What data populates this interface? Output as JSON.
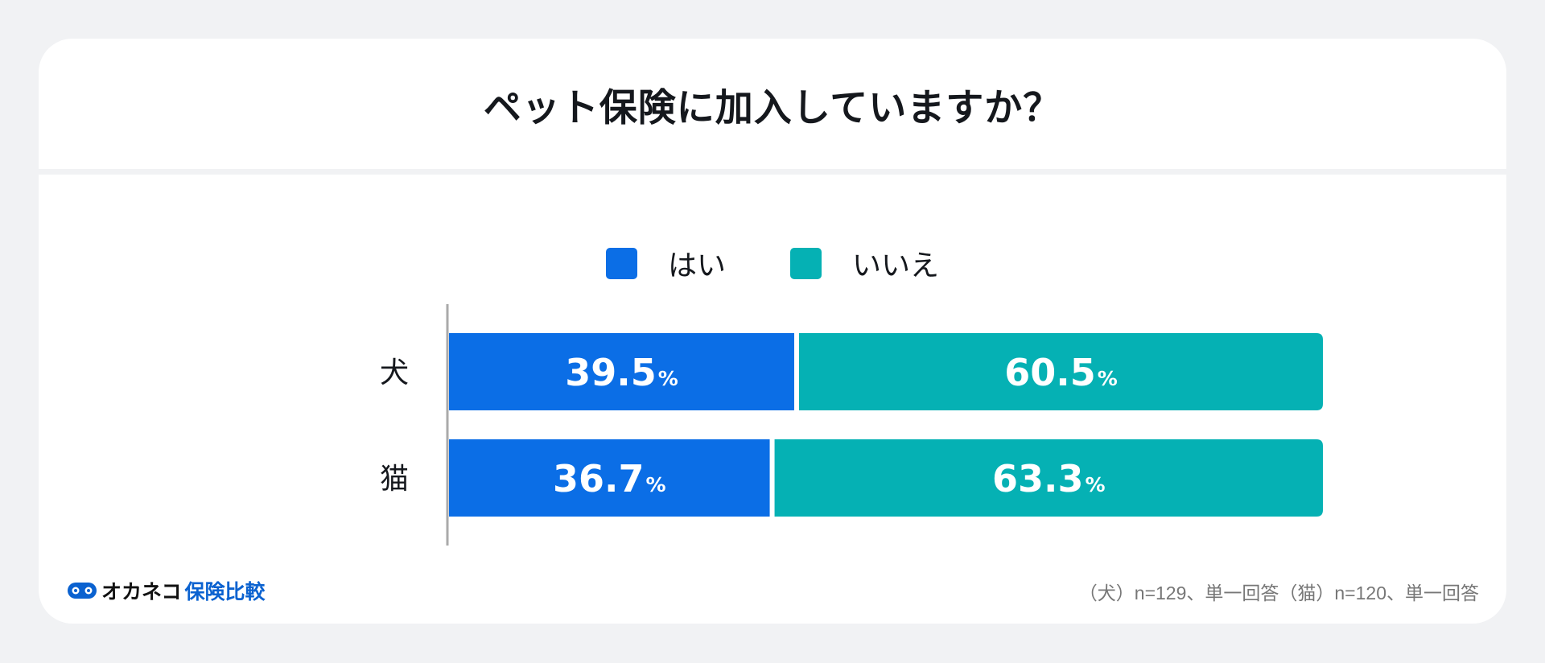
{
  "page": {
    "title": "ペット保険に加入していますか？",
    "note": "（犬）n=129、単一回答（猫）n=120、単一回答",
    "logo_main": "オカネコ",
    "logo_sub": "保険比較",
    "logo_icon": "owl-face-icon"
  },
  "colors": {
    "yes": "#0b6ee6",
    "no": "#05b1b4",
    "background": "#f1f2f4",
    "card": "#ffffff",
    "axis": "#aaaaaa"
  },
  "chart_data": {
    "type": "bar",
    "orientation": "horizontal",
    "stacked": true,
    "percent_stacked": true,
    "categories": [
      "犬",
      "猫"
    ],
    "series": [
      {
        "name": "はい",
        "values": [
          39.5,
          36.7
        ]
      },
      {
        "name": "いいえ",
        "values": [
          60.5,
          63.3
        ]
      }
    ],
    "value_suffix": "%",
    "xlim": [
      0,
      100
    ],
    "legend_position": "top-center",
    "grid": false
  }
}
